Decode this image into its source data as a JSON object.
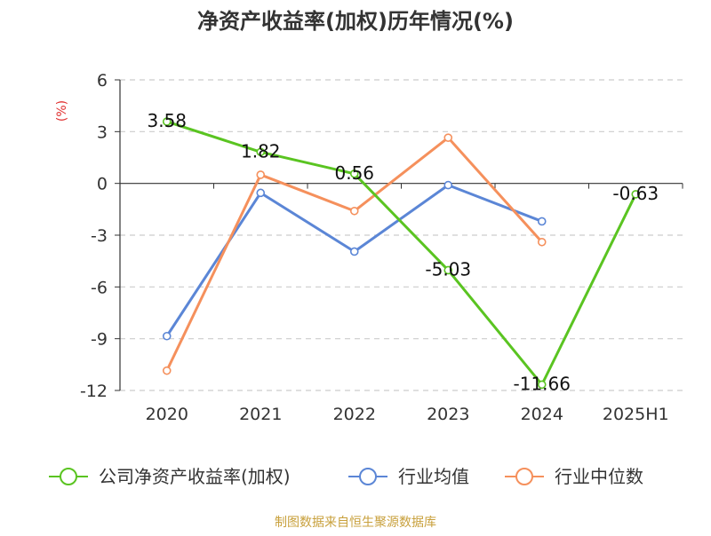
{
  "chart_data": {
    "type": "line",
    "title": "净资产收益率(加权)历年情况(%)",
    "ylabel": "(%)",
    "ylim": [
      -12,
      6
    ],
    "yticks": [
      6,
      3,
      0,
      -3,
      -6,
      -9,
      -12
    ],
    "categories": [
      "2020",
      "2021",
      "2022",
      "2023",
      "2024",
      "2025H1"
    ],
    "grid": true,
    "legend_position": "bottom",
    "series": [
      {
        "name": "公司净资产收益率(加权)",
        "color": "#5ac421",
        "values": [
          3.58,
          1.82,
          0.56,
          -5.03,
          -11.66,
          -0.63
        ],
        "labels": [
          "3.58",
          "1.82",
          "0.56",
          "-5.03",
          "-11.66",
          "-0.63"
        ]
      },
      {
        "name": "行业均值",
        "color": "#5b86d6",
        "values": [
          -8.85,
          -0.55,
          -3.95,
          -0.1,
          -2.2,
          null
        ]
      },
      {
        "name": "行业中位数",
        "color": "#f5905c",
        "values": [
          -10.85,
          0.5,
          -1.6,
          2.65,
          -3.4,
          null
        ]
      }
    ]
  },
  "source": "制图数据来自恒生聚源数据库"
}
